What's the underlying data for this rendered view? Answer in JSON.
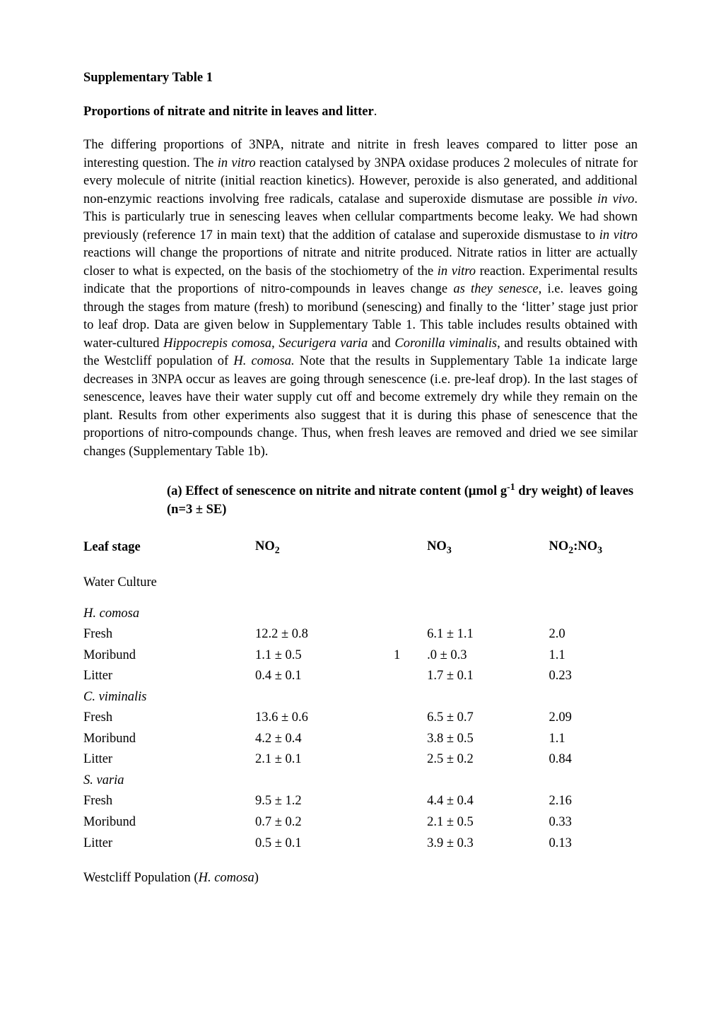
{
  "heading": "Supplementary Table 1",
  "subheading_prefix": "Proportions of nitrate and nitrite in leaves and litter",
  "subheading_dot": ".",
  "para_frag1": "The differing proportions of 3NPA, nitrate and nitrite in fresh leaves compared to litter pose an interesting question. The ",
  "para_it1": "in vitro",
  "para_frag2": " reaction catalysed by 3NPA oxidase produces 2 molecules of nitrate for every molecule of nitrite (initial reaction kinetics). However, peroxide is also generated, and additional non-enzymic reactions involving free radicals, catalase and superoxide dismutase are possible ",
  "para_it2": "in vivo",
  "para_frag3": ". This is particularly true in senescing leaves when cellular compartments become leaky. We had shown previously (reference 17 in main text) that the addition of catalase and superoxide dismustase to ",
  "para_it3": "in vitro",
  "para_frag4": " reactions will change the proportions of nitrate and nitrite produced. Nitrate ratios in litter are actually closer to what is expected, on the basis of the stochiometry of the ",
  "para_it4": "in vitro",
  "para_frag5": " reaction. Experimental results indicate that the proportions of nitro-compounds in leaves change ",
  "para_it5": "as they senesce",
  "para_frag6": ", i.e. leaves going through the stages from mature (fresh) to moribund (senescing) and finally to the ‘litter’ stage just prior to leaf drop. Data are given below in Supplementary Table 1. This table includes results obtained with water-cultured ",
  "para_it6": "Hippocrepis comosa",
  "para_frag7": ", ",
  "para_it7": "Securigera varia",
  "para_frag8": " and ",
  "para_it8": "Coronilla viminalis",
  "para_frag9": ", and results obtained with the Westcliff population of ",
  "para_it9": "H. comosa.",
  "para_frag10": " Note that the results in Supplementary Table 1a indicate large decreases in 3NPA occur as leaves are going through senescence (i.e. pre-leaf drop). In the last stages of senescence, leaves have their water supply cut off and become extremely dry while they remain on the plant. Results from other experiments also suggest that it is during this phase of senescence that the proportions of nitro-compounds change. Thus, when fresh leaves are removed and dried we see similar changes (Supplementary Table 1b).",
  "caption_prefix": "(a) Effect of senescence on nitrite and nitrate content (μmol g",
  "caption_sup": "-1",
  "caption_suffix": " dry weight) of leaves (n=3 ± SE)",
  "headers": {
    "stage": "Leaf stage",
    "no2_pre": "NO",
    "no2_sub": "2",
    "no3_pre": "NO",
    "no3_sub": "3",
    "ratio_pre": "NO",
    "ratio_sub1": "2",
    "ratio_colon": ":NO",
    "ratio_sub2": "3"
  },
  "section_wc": "Water Culture",
  "species": {
    "hc": "H. comosa",
    "cv": "C. viminalis",
    "sv": "S. varia"
  },
  "rows": {
    "hc_fresh": {
      "stage": "Fresh",
      "no2": "12.2 ± 0.8",
      "mid": "",
      "no3": "6.1 ± 1.1",
      "ratio": "2.0"
    },
    "hc_moribund": {
      "stage": "Moribund",
      "no2": "1.1 ± 0.5",
      "mid": "1",
      "no3": ".0 ± 0.3",
      "ratio": "1.1"
    },
    "hc_litter": {
      "stage": "Litter",
      "no2": "0.4 ± 0.1",
      "mid": "",
      "no3": "1.7 ± 0.1",
      "ratio": "0.23"
    },
    "cv_fresh": {
      "stage": "Fresh",
      "no2": "13.6 ± 0.6",
      "mid": "",
      "no3": "6.5 ± 0.7",
      "ratio": "2.09"
    },
    "cv_moribund": {
      "stage": "Moribund",
      "no2": "4.2 ± 0.4",
      "mid": "",
      "no3": "3.8 ± 0.5",
      "ratio": "1.1"
    },
    "cv_litter": {
      "stage": "Litter",
      "no2": "2.1 ± 0.1",
      "mid": "",
      "no3": "2.5 ± 0.2",
      "ratio": "0.84"
    },
    "sv_fresh": {
      "stage": "Fresh",
      "no2": "9.5 ± 1.2",
      "mid": "",
      "no3": "4.4 ± 0.4",
      "ratio": "2.16"
    },
    "sv_moribund": {
      "stage": "Moribund",
      "no2": "0.7 ± 0.2",
      "mid": "",
      "no3": "2.1 ± 0.5",
      "ratio": "0.33"
    },
    "sv_litter": {
      "stage": "Litter",
      "no2": "0.5 ± 0.1",
      "mid": "",
      "no3": "3.9 ± 0.3",
      "ratio": "0.13"
    }
  },
  "footnote_prefix": "Westcliff Population (",
  "footnote_it": "H. comosa",
  "footnote_suffix": ")",
  "colors": {
    "text": "#000000",
    "background": "#ffffff"
  },
  "fonts": {
    "body_family": "Times New Roman",
    "body_size_pt": 14,
    "body_weight": "normal",
    "heading_weight": "bold"
  }
}
